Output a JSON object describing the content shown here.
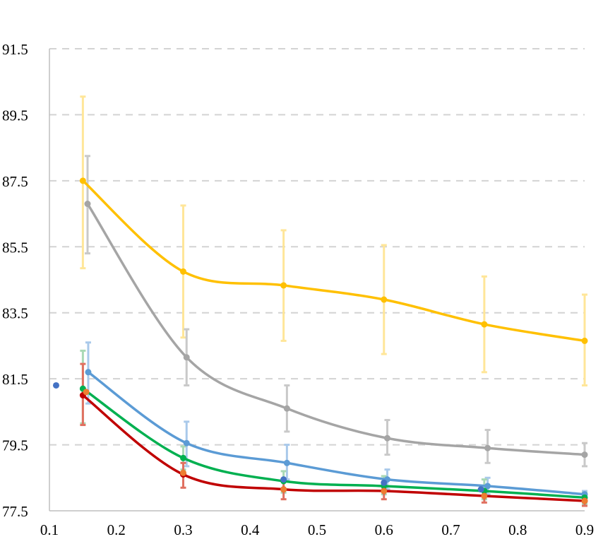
{
  "chart_data": {
    "type": "line",
    "title": "",
    "xlabel": "",
    "ylabel": "",
    "xlim": [
      0.1,
      0.9
    ],
    "ylim": [
      77.5,
      91.5
    ],
    "xticks": [
      "0.1",
      "0.2",
      "0.3",
      "0.4",
      "0.5",
      "0.6",
      "0.7",
      "0.8",
      "0.9"
    ],
    "yticks": [
      "77.5",
      "79.5",
      "81.5",
      "83.5",
      "85.5",
      "87.5",
      "89.5",
      "91.5"
    ],
    "grid": "horizontal-dashed",
    "legend": "none",
    "series": [
      {
        "color": "#FFC000",
        "errcolor": "#FFE699",
        "x": [
          0.15,
          0.3,
          0.45,
          0.6,
          0.75,
          0.9
        ],
        "y": [
          87.5,
          84.75,
          84.33,
          83.9,
          83.15,
          82.65
        ],
        "err_low": [
          84.85,
          82.75,
          82.65,
          82.25,
          81.7,
          81.3
        ],
        "err_high": [
          90.05,
          86.75,
          86.0,
          85.55,
          84.6,
          84.05
        ]
      },
      {
        "color": "#A5A5A5",
        "errcolor": "#C9C9C9",
        "x": [
          0.157,
          0.305,
          0.455,
          0.605,
          0.755,
          0.9
        ],
        "y": [
          86.8,
          82.15,
          80.6,
          79.7,
          79.4,
          79.2
        ],
        "err_low": [
          85.3,
          81.3,
          79.9,
          79.2,
          78.95,
          78.85
        ],
        "err_high": [
          88.25,
          83.0,
          81.3,
          80.25,
          79.95,
          79.55
        ]
      },
      {
        "color": "#5B9BD5",
        "errcolor": "#A9C9EA",
        "x": [
          0.158,
          0.305,
          0.455,
          0.605,
          0.755,
          0.9
        ],
        "y": [
          81.7,
          79.55,
          78.95,
          78.45,
          78.25,
          78.0
        ],
        "err_low": [
          80.75,
          78.85,
          78.45,
          78.15,
          78.0,
          77.75
        ],
        "err_high": [
          82.6,
          80.2,
          79.5,
          78.75,
          78.5,
          78.1
        ]
      },
      {
        "color": "#00B050",
        "errcolor": "#A9D9B5",
        "x": [
          0.15,
          0.3,
          0.45,
          0.6,
          0.75,
          0.9
        ],
        "y": [
          81.2,
          79.1,
          78.4,
          78.25,
          78.1,
          77.9
        ],
        "err_low": [
          80.15,
          78.75,
          78.05,
          78.0,
          77.85,
          77.7
        ],
        "err_high": [
          82.35,
          79.45,
          78.7,
          78.55,
          78.45,
          78.05
        ]
      },
      {
        "color": "#C00000",
        "errcolor": "#E07060",
        "x": [
          0.15,
          0.3,
          0.45,
          0.6,
          0.75,
          0.9
        ],
        "y": [
          81.0,
          78.6,
          78.15,
          78.1,
          77.95,
          77.8
        ],
        "err_low": [
          80.1,
          78.2,
          77.85,
          77.85,
          77.75,
          77.65
        ],
        "err_high": [
          81.95,
          78.95,
          78.45,
          78.35,
          78.15,
          77.95
        ]
      },
      {
        "color": "#4472C4",
        "errcolor": "#8FAADC",
        "x": [
          0.11,
          0.45,
          0.6,
          0.745
        ],
        "y": [
          81.3,
          78.45,
          78.35,
          78.15
        ],
        "err_low": [],
        "err_high": []
      },
      {
        "color": "#ED7D31",
        "errcolor": "#F4B183",
        "x": [
          0.155,
          0.3,
          0.45,
          0.6,
          0.75,
          0.9
        ],
        "y": [
          81.1,
          78.65,
          78.15,
          78.1,
          77.95,
          77.8
        ],
        "err_low": [],
        "err_high": []
      }
    ]
  }
}
